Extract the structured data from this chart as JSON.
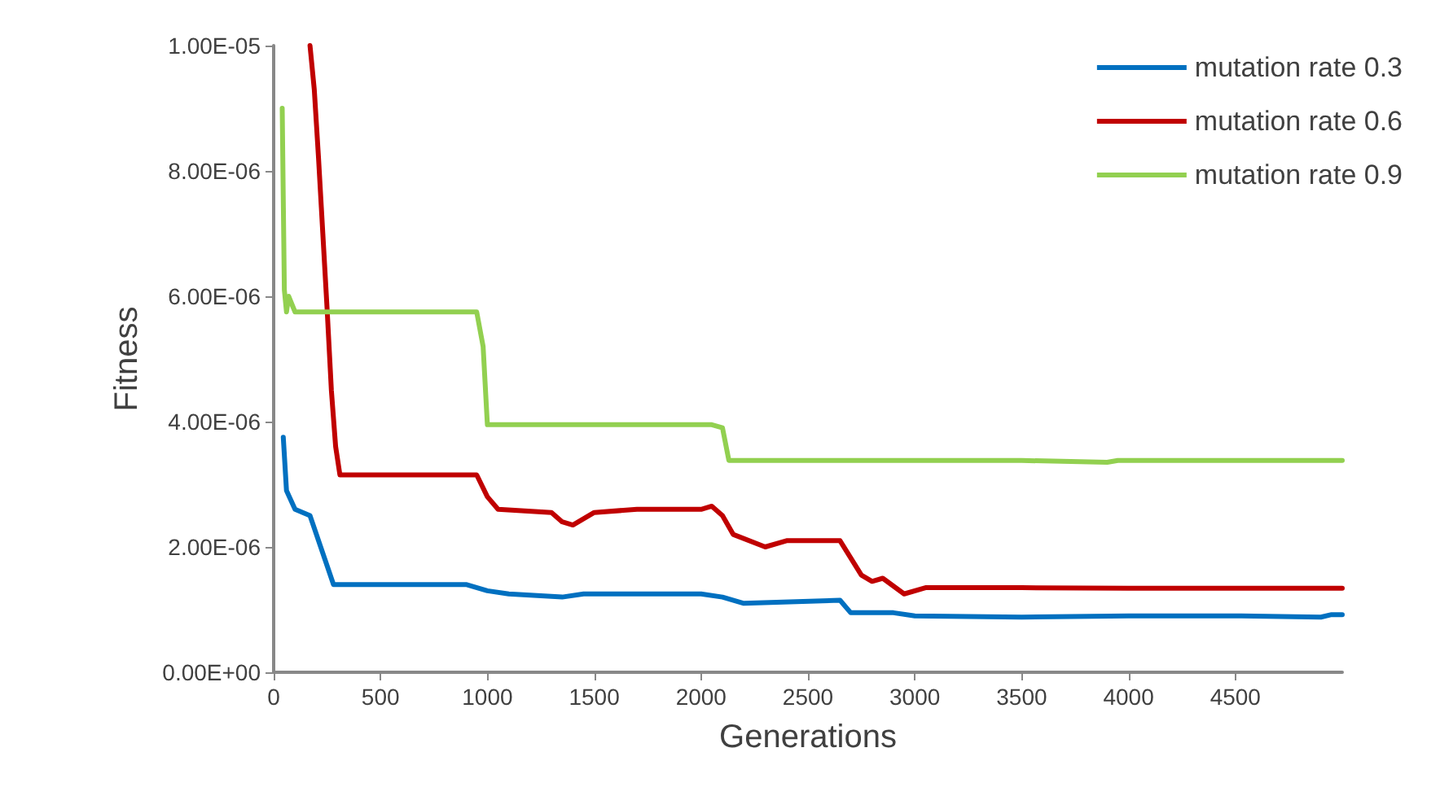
{
  "chart_data": {
    "type": "line",
    "xlabel": "Generations",
    "ylabel": "Fitness",
    "xlim": [
      0,
      5000
    ],
    "xticks": [
      0,
      500,
      1000,
      1500,
      2000,
      2500,
      3000,
      3500,
      4000,
      4500
    ],
    "ylim": [
      0,
      1e-05
    ],
    "yticks": [
      {
        "value": 0,
        "label": "0.00E+00"
      },
      {
        "value": 2e-06,
        "label": "2.00E-06"
      },
      {
        "value": 4e-06,
        "label": "4.00E-06"
      },
      {
        "value": 6e-06,
        "label": "6.00E-06"
      },
      {
        "value": 8e-06,
        "label": "8.00E-06"
      },
      {
        "value": 1e-05,
        "label": "1.00E-05"
      }
    ],
    "grid": false,
    "legend": "top right",
    "marker": "none",
    "line_style": "solid",
    "series": [
      {
        "name": "mutation rate 0.3",
        "color": "#0070c0",
        "x": [
          45,
          60,
          100,
          170,
          220,
          280,
          500,
          900,
          1000,
          1100,
          1350,
          1450,
          2000,
          2100,
          2200,
          2650,
          2700,
          2900,
          3000,
          3500,
          4000,
          4500,
          4900,
          4950,
          5000
        ],
        "values": [
          3.75e-06,
          2.9e-06,
          2.6e-06,
          2.5e-06,
          2e-06,
          1.4e-06,
          1.4e-06,
          1.4e-06,
          1.3e-06,
          1.25e-06,
          1.2e-06,
          1.25e-06,
          1.25e-06,
          1.2e-06,
          1.1e-06,
          1.15e-06,
          9.5e-07,
          9.5e-07,
          9e-07,
          8.8e-07,
          9e-07,
          9e-07,
          8.8e-07,
          9.2e-07,
          9.2e-07
        ]
      },
      {
        "name": "mutation rate 0.6",
        "color": "#c00000",
        "x": [
          170,
          190,
          210,
          230,
          250,
          270,
          290,
          310,
          500,
          950,
          1000,
          1050,
          1300,
          1350,
          1400,
          1500,
          1700,
          2000,
          2050,
          2100,
          2150,
          2300,
          2400,
          2650,
          2750,
          2800,
          2850,
          2950,
          3050,
          3500,
          4000,
          4500,
          5000
        ],
        "values": [
          1e-05,
          9.3e-06,
          8.2e-06,
          7e-06,
          5.8e-06,
          4.5e-06,
          3.6e-06,
          3.15e-06,
          3.15e-06,
          3.15e-06,
          2.8e-06,
          2.6e-06,
          2.55e-06,
          2.4e-06,
          2.35e-06,
          2.55e-06,
          2.6e-06,
          2.6e-06,
          2.65e-06,
          2.5e-06,
          2.2e-06,
          2e-06,
          2.1e-06,
          2.1e-06,
          1.55e-06,
          1.45e-06,
          1.5e-06,
          1.25e-06,
          1.35e-06,
          1.35e-06,
          1.34e-06,
          1.34e-06,
          1.34e-06
        ]
      },
      {
        "name": "mutation rate 0.9",
        "color": "#92d050",
        "x": [
          40,
          50,
          60,
          70,
          100,
          500,
          900,
          950,
          980,
          1000,
          1400,
          2050,
          2100,
          2130,
          3500,
          3900,
          3950,
          5000
        ],
        "values": [
          9e-06,
          6.1e-06,
          5.75e-06,
          6e-06,
          5.75e-06,
          5.75e-06,
          5.75e-06,
          5.75e-06,
          5.2e-06,
          3.95e-06,
          3.95e-06,
          3.95e-06,
          3.9e-06,
          3.38e-06,
          3.38e-06,
          3.35e-06,
          3.38e-06,
          3.38e-06
        ]
      }
    ]
  }
}
